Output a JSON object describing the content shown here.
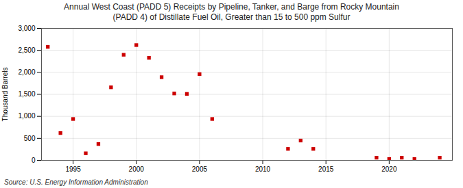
{
  "chart_data": {
    "type": "scatter",
    "title": "Annual West Coast (PADD 5) Receipts by Pipeline, Tanker, and Barge from Rocky Mountain\n(PADD 4) of Distillate Fuel Oil, Greater than 15 to 500 ppm Sulfur",
    "ylabel": "Thousand Barrels",
    "source": "Source: U.S. Energy Information Administration",
    "x": [
      1993,
      1994,
      1995,
      1996,
      1997,
      1998,
      1999,
      2000,
      2001,
      2002,
      2003,
      2004,
      2005,
      2006,
      2012,
      2013,
      2014,
      2019,
      2020,
      2021,
      2022,
      2024
    ],
    "values": [
      2580,
      620,
      940,
      160,
      370,
      1660,
      2400,
      2620,
      2330,
      1890,
      1520,
      1510,
      1960,
      940,
      260,
      450,
      260,
      60,
      30,
      60,
      30,
      60
    ],
    "color": "#cc0000",
    "marker": "square",
    "xlim": [
      1992.5,
      2025
    ],
    "xticks": [
      1995,
      2000,
      2005,
      2010,
      2015,
      2020
    ],
    "ylim": [
      0,
      3000
    ],
    "yticks": [
      0,
      500,
      {
        "value": 1000,
        "label": "1,000"
      },
      {
        "value": 1500,
        "label": "1,500"
      },
      {
        "value": 2000,
        "label": "2,000"
      },
      {
        "value": 2500,
        "label": "2,500"
      },
      {
        "value": 3000,
        "label": "3,000"
      }
    ],
    "grid": true
  }
}
